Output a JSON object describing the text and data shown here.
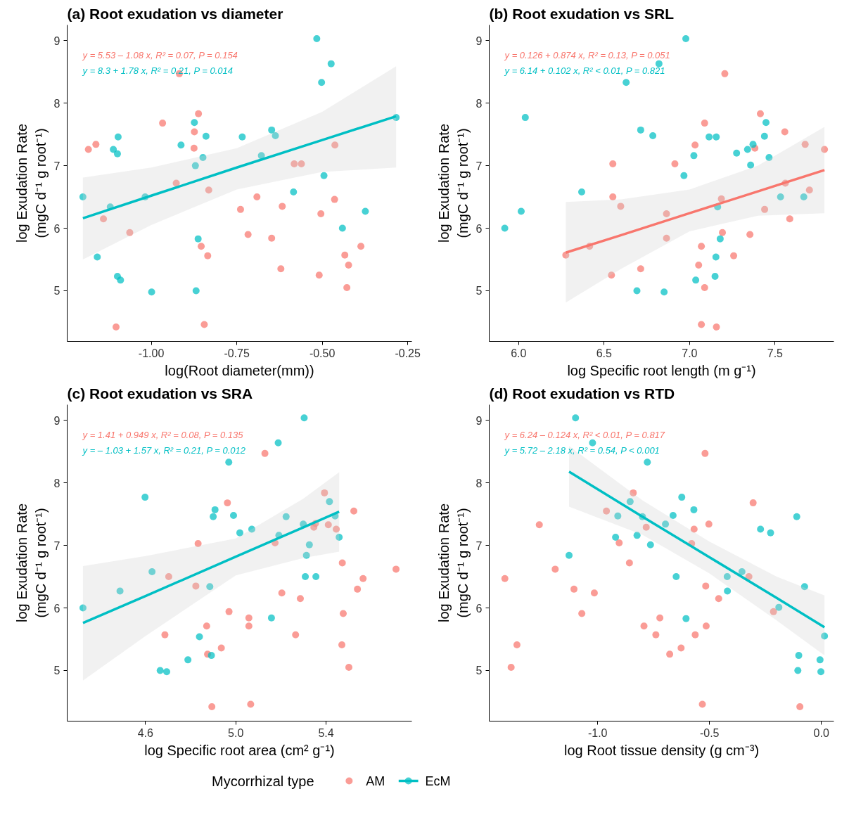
{
  "chart_data": [
    {
      "type": "scatter",
      "title": "(a) Root exudation vs diameter",
      "xlabel": "log(Root diameter(mm))",
      "ylabel": "log Exudation Rate\n(mgC d⁻¹ g root⁻¹)",
      "annotations": [
        "y = 5.53 – 1.08 x, R² = 0.07, P = 0.154",
        "y = 8.3 + 1.78 x, R² = 0.21, P = 0.014"
      ],
      "xlim": [
        -1.246,
        -0.238
      ],
      "ylim": [
        4.19,
        9.25
      ],
      "xticks": [
        {
          "value": -1.0,
          "label": "-1.00"
        },
        {
          "value": -0.75,
          "label": "-0.75"
        },
        {
          "value": -0.5,
          "label": "-0.50"
        },
        {
          "value": -0.25,
          "label": "-0.25"
        }
      ],
      "yticks": [
        5,
        6,
        7,
        8,
        9
      ],
      "grid": false,
      "marker": "circle",
      "legend": "bottom",
      "legend_title": "Mycorrhizal type",
      "series": [
        {
          "name": "AM",
          "color": "#f8766d",
          "x": [
            -1.184,
            -1.162,
            -1.14,
            -1.103,
            -1.063,
            -0.967,
            -0.918,
            -0.927,
            -0.862,
            -0.874,
            -0.875,
            -0.832,
            -0.854,
            -0.835,
            -0.845,
            -0.739,
            -0.691,
            -0.717,
            -0.648,
            -0.617,
            -0.621,
            -0.582,
            -0.561,
            -0.463,
            -0.464,
            -0.504,
            -0.509,
            -0.434,
            -0.423,
            -0.428,
            -0.387
          ],
          "values": [
            7.26,
            7.34,
            6.15,
            4.42,
            5.93,
            7.68,
            8.47,
            6.72,
            7.83,
            7.54,
            7.28,
            6.61,
            5.71,
            5.56,
            4.46,
            6.3,
            6.5,
            5.9,
            5.84,
            6.35,
            5.35,
            7.03,
            7.03,
            7.33,
            6.46,
            6.23,
            5.25,
            5.57,
            5.41,
            5.05,
            5.71
          ]
        },
        {
          "name": "EcM",
          "color": "#00bfc4",
          "x": [
            -1.2,
            -1.158,
            -1.12,
            -1.097,
            -1.111,
            -1.099,
            -1.099,
            -1.09,
            -1.018,
            -0.999,
            -0.913,
            -0.874,
            -0.871,
            -0.849,
            -0.84,
            -0.863,
            -0.869,
            -0.734,
            -0.678,
            -0.648,
            -0.637,
            -0.584,
            -0.516,
            -0.474,
            -0.502,
            -0.495,
            -0.441,
            -0.374,
            -0.284
          ],
          "values": [
            6.5,
            5.54,
            6.34,
            7.46,
            7.26,
            7.19,
            5.23,
            5.17,
            6.5,
            4.98,
            7.33,
            7.69,
            7.0,
            7.13,
            7.47,
            5.83,
            5.0,
            7.46,
            7.16,
            7.57,
            7.48,
            6.58,
            9.03,
            8.63,
            8.33,
            6.84,
            6.0,
            6.27,
            7.77
          ]
        },
        {
          "color": "#00bfc4",
          "type": "line",
          "marker": "none",
          "x": [
            -1.2,
            -1.0,
            -0.75,
            -0.5,
            -0.284
          ],
          "values": [
            6.16,
            6.52,
            6.97,
            7.41,
            7.79
          ],
          "lower": [
            5.5,
            6.05,
            6.62,
            6.9,
            6.97
          ],
          "upper": [
            6.81,
            6.97,
            7.28,
            7.86,
            8.59
          ]
        }
      ]
    },
    {
      "type": "scatter",
      "title": "(b) Root exudation vs SRL",
      "xlabel": "log Specific root length (m g⁻¹)",
      "ylabel": "log Exudation Rate\n(mgC d⁻¹ g root⁻¹)",
      "annotations": [
        "y = 0.126 + 0.874 x, R² = 0.13, P = 0.051",
        "y = 6.14 + 0.102 x, R² < 0.01, P = 0.821"
      ],
      "xlim": [
        5.828,
        7.844
      ],
      "ylim": [
        4.19,
        9.25
      ],
      "xticks": [
        {
          "value": 6.0,
          "label": "6.0"
        },
        6.5,
        {
          "value": 7.0,
          "label": "7.0"
        },
        7.5
      ],
      "yticks": [
        5,
        6,
        7,
        8,
        9
      ],
      "grid": false,
      "marker": "circle",
      "series": [
        {
          "color": "#f8766d",
          "x": [
            7.206,
            7.414,
            7.088,
            7.557,
            7.676,
            7.789,
            7.032,
            7.382,
            6.551,
            6.914,
            7.56,
            7.701,
            6.551,
            6.597,
            7.186,
            6.865,
            7.439,
            7.586,
            6.865,
            7.192,
            7.353,
            6.415,
            6.276,
            7.069,
            7.258,
            6.714,
            6.543,
            7.053,
            7.088,
            7.069,
            7.157
          ],
          "values": [
            8.47,
            7.83,
            7.68,
            7.54,
            7.34,
            7.26,
            7.33,
            7.28,
            7.03,
            7.03,
            6.72,
            6.61,
            6.5,
            6.35,
            6.47,
            6.23,
            6.3,
            6.15,
            5.84,
            5.93,
            5.9,
            5.71,
            5.57,
            5.71,
            5.56,
            5.35,
            5.25,
            5.41,
            5.05,
            4.46,
            4.42
          ]
        },
        {
          "color": "#00bfc4",
          "x": [
            6.978,
            6.821,
            6.629,
            6.039,
            6.714,
            6.785,
            7.114,
            7.156,
            7.447,
            7.438,
            7.371,
            7.339,
            7.275,
            7.025,
            7.465,
            7.357,
            6.967,
            6.369,
            7.532,
            7.668,
            7.164,
            6.015,
            5.919,
            7.179,
            7.154,
            7.149,
            7.036,
            6.692,
            6.851
          ],
          "values": [
            9.03,
            8.63,
            8.33,
            7.77,
            7.57,
            7.48,
            7.46,
            7.46,
            7.69,
            7.47,
            7.34,
            7.26,
            7.2,
            7.16,
            7.13,
            7.01,
            6.84,
            6.58,
            6.5,
            6.5,
            6.34,
            6.27,
            6.0,
            5.83,
            5.54,
            5.23,
            5.17,
            5.0,
            4.98
          ]
        },
        {
          "color": "#f8766d",
          "type": "line",
          "marker": "none",
          "x": [
            6.276,
            6.6,
            7.0,
            7.4,
            7.789
          ],
          "values": [
            5.61,
            5.89,
            6.24,
            6.59,
            6.93
          ],
          "lower": [
            4.81,
            5.35,
            5.95,
            6.2,
            6.24
          ],
          "upper": [
            6.42,
            6.46,
            6.62,
            7.0,
            7.62
          ]
        }
      ]
    },
    {
      "type": "scatter",
      "title": "(c) Root exudation vs SRA",
      "xlabel": "log Specific root area (cm² g⁻¹)",
      "ylabel": "log Exudation Rate\n(mgC d⁻¹ g root⁻¹)",
      "annotations": [
        "y = 1.41 + 0.949 x, R² = 0.08, P = 0.135",
        "y = – 1.03 + 1.57 x, R² = 0.21, P = 0.012"
      ],
      "xlim": [
        4.253,
        5.78
      ],
      "ylim": [
        4.19,
        9.25
      ],
      "xticks": [
        4.6,
        {
          "value": 5.0,
          "label": "5.0"
        },
        5.4
      ],
      "yticks": [
        5,
        6,
        7,
        8,
        9
      ],
      "grid": false,
      "marker": "circle",
      "series": [
        {
          "color": "#f8766d",
          "x": [
            5.129,
            4.963,
            5.393,
            5.523,
            5.353,
            5.346,
            5.41,
            5.445,
            4.833,
            5.174,
            5.472,
            5.71,
            4.703,
            5.564,
            4.823,
            5.539,
            5.204,
            5.286,
            4.97,
            5.476,
            5.058,
            5.058,
            4.871,
            4.686,
            5.265,
            4.936,
            4.875,
            5.47,
            5.501,
            4.894,
            5.066
          ],
          "values": [
            8.47,
            7.68,
            7.84,
            7.55,
            7.35,
            7.29,
            7.33,
            7.26,
            7.03,
            7.04,
            6.72,
            6.62,
            6.5,
            6.47,
            6.35,
            6.3,
            6.24,
            6.15,
            5.94,
            5.91,
            5.84,
            5.71,
            5.71,
            5.57,
            5.57,
            5.36,
            5.26,
            5.41,
            5.05,
            4.42,
            4.46
          ]
        },
        {
          "color": "#00bfc4",
          "x": [
            5.303,
            5.188,
            4.969,
            4.598,
            5.415,
            4.908,
            4.9,
            4.99,
            5.223,
            5.44,
            5.299,
            5.071,
            5.018,
            5.191,
            5.458,
            5.326,
            5.313,
            4.629,
            5.308,
            5.355,
            4.487,
            4.885,
            4.323,
            5.158,
            4.839,
            4.892,
            4.788,
            4.665,
            4.694
          ],
          "values": [
            9.04,
            8.64,
            8.33,
            7.77,
            7.7,
            7.57,
            7.46,
            7.48,
            7.46,
            7.47,
            7.34,
            7.26,
            7.2,
            7.16,
            7.13,
            7.01,
            6.84,
            6.58,
            6.5,
            6.5,
            6.27,
            6.34,
            6.0,
            5.84,
            5.54,
            5.24,
            5.17,
            5.0,
            4.98
          ]
        },
        {
          "color": "#00bfc4",
          "type": "line",
          "marker": "none",
          "x": [
            4.323,
            4.6,
            5.0,
            5.3,
            5.458
          ],
          "values": [
            5.76,
            6.19,
            6.82,
            7.29,
            7.54
          ],
          "lower": [
            4.84,
            5.55,
            6.52,
            6.8,
            6.9
          ],
          "upper": [
            6.67,
            6.83,
            7.11,
            7.75,
            8.17
          ]
        }
      ]
    },
    {
      "type": "scatter",
      "title": "(d) Root exudation vs RTD",
      "xlabel": "log Root tissue density (g cm⁻³)",
      "ylabel": "log Exudation Rate\n(mgC d⁻¹ g root⁻¹)",
      "annotations": [
        "y = 6.24 – 0.124 x, R² < 0.01, P = 0.817",
        "y = 5.72 – 2.18 x, R² = 0.54, P < 0.001"
      ],
      "xlim": [
        -1.485,
        0.056
      ],
      "ylim": [
        4.19,
        9.25
      ],
      "xticks": [
        {
          "value": -1.0,
          "label": "-1.0"
        },
        {
          "value": -0.5,
          "label": "-0.5"
        },
        {
          "value": 0.0,
          "label": "0.0"
        }
      ],
      "yticks": [
        5,
        6,
        7,
        8,
        9
      ],
      "grid": false,
      "marker": "circle",
      "series": [
        {
          "color": "#f8766d",
          "x": [
            -0.52,
            -0.841,
            -0.305,
            -0.961,
            -1.261,
            -0.503,
            -0.783,
            -0.569,
            -0.904,
            -0.58,
            -0.858,
            -1.19,
            -1.415,
            -0.324,
            -1.106,
            -0.517,
            -1.015,
            -0.459,
            -0.214,
            -1.071,
            -0.722,
            -0.793,
            -0.515,
            -0.74,
            -0.564,
            -0.627,
            -0.678,
            -1.361,
            -1.387,
            -0.532,
            -0.096
          ],
          "values": [
            8.47,
            7.84,
            7.68,
            7.55,
            7.33,
            7.34,
            7.29,
            7.26,
            7.04,
            7.03,
            6.72,
            6.62,
            6.47,
            6.5,
            6.3,
            6.35,
            6.24,
            6.15,
            5.94,
            5.91,
            5.84,
            5.71,
            5.71,
            5.57,
            5.57,
            5.36,
            5.26,
            5.41,
            5.05,
            4.46,
            4.42
          ]
        },
        {
          "color": "#00bfc4",
          "x": [
            -1.099,
            -1.023,
            -0.778,
            -0.855,
            -0.624,
            -0.57,
            -0.91,
            -0.8,
            -0.663,
            -0.11,
            -0.697,
            -0.272,
            -0.227,
            -0.92,
            -0.824,
            -0.764,
            -1.128,
            -0.355,
            -0.649,
            -0.421,
            -0.075,
            -0.42,
            -0.19,
            -0.605,
            0.014,
            -0.101,
            -0.006,
            -0.105,
            -0.002
          ],
          "values": [
            9.04,
            8.64,
            8.33,
            7.7,
            7.77,
            7.57,
            7.47,
            7.46,
            7.48,
            7.46,
            7.34,
            7.26,
            7.2,
            7.13,
            7.16,
            7.01,
            6.84,
            6.58,
            6.5,
            6.5,
            6.34,
            6.27,
            6.01,
            5.83,
            5.55,
            5.24,
            5.17,
            5.0,
            4.98
          ]
        },
        {
          "color": "#00bfc4",
          "type": "line",
          "marker": "none",
          "x": [
            -1.128,
            -0.8,
            -0.5,
            -0.2,
            0.014
          ],
          "values": [
            8.18,
            7.46,
            6.81,
            6.16,
            5.69
          ],
          "lower": [
            7.62,
            7.17,
            6.55,
            5.8,
            5.24
          ],
          "upper": [
            8.59,
            7.72,
            7.06,
            6.5,
            6.2
          ]
        }
      ]
    }
  ]
}
